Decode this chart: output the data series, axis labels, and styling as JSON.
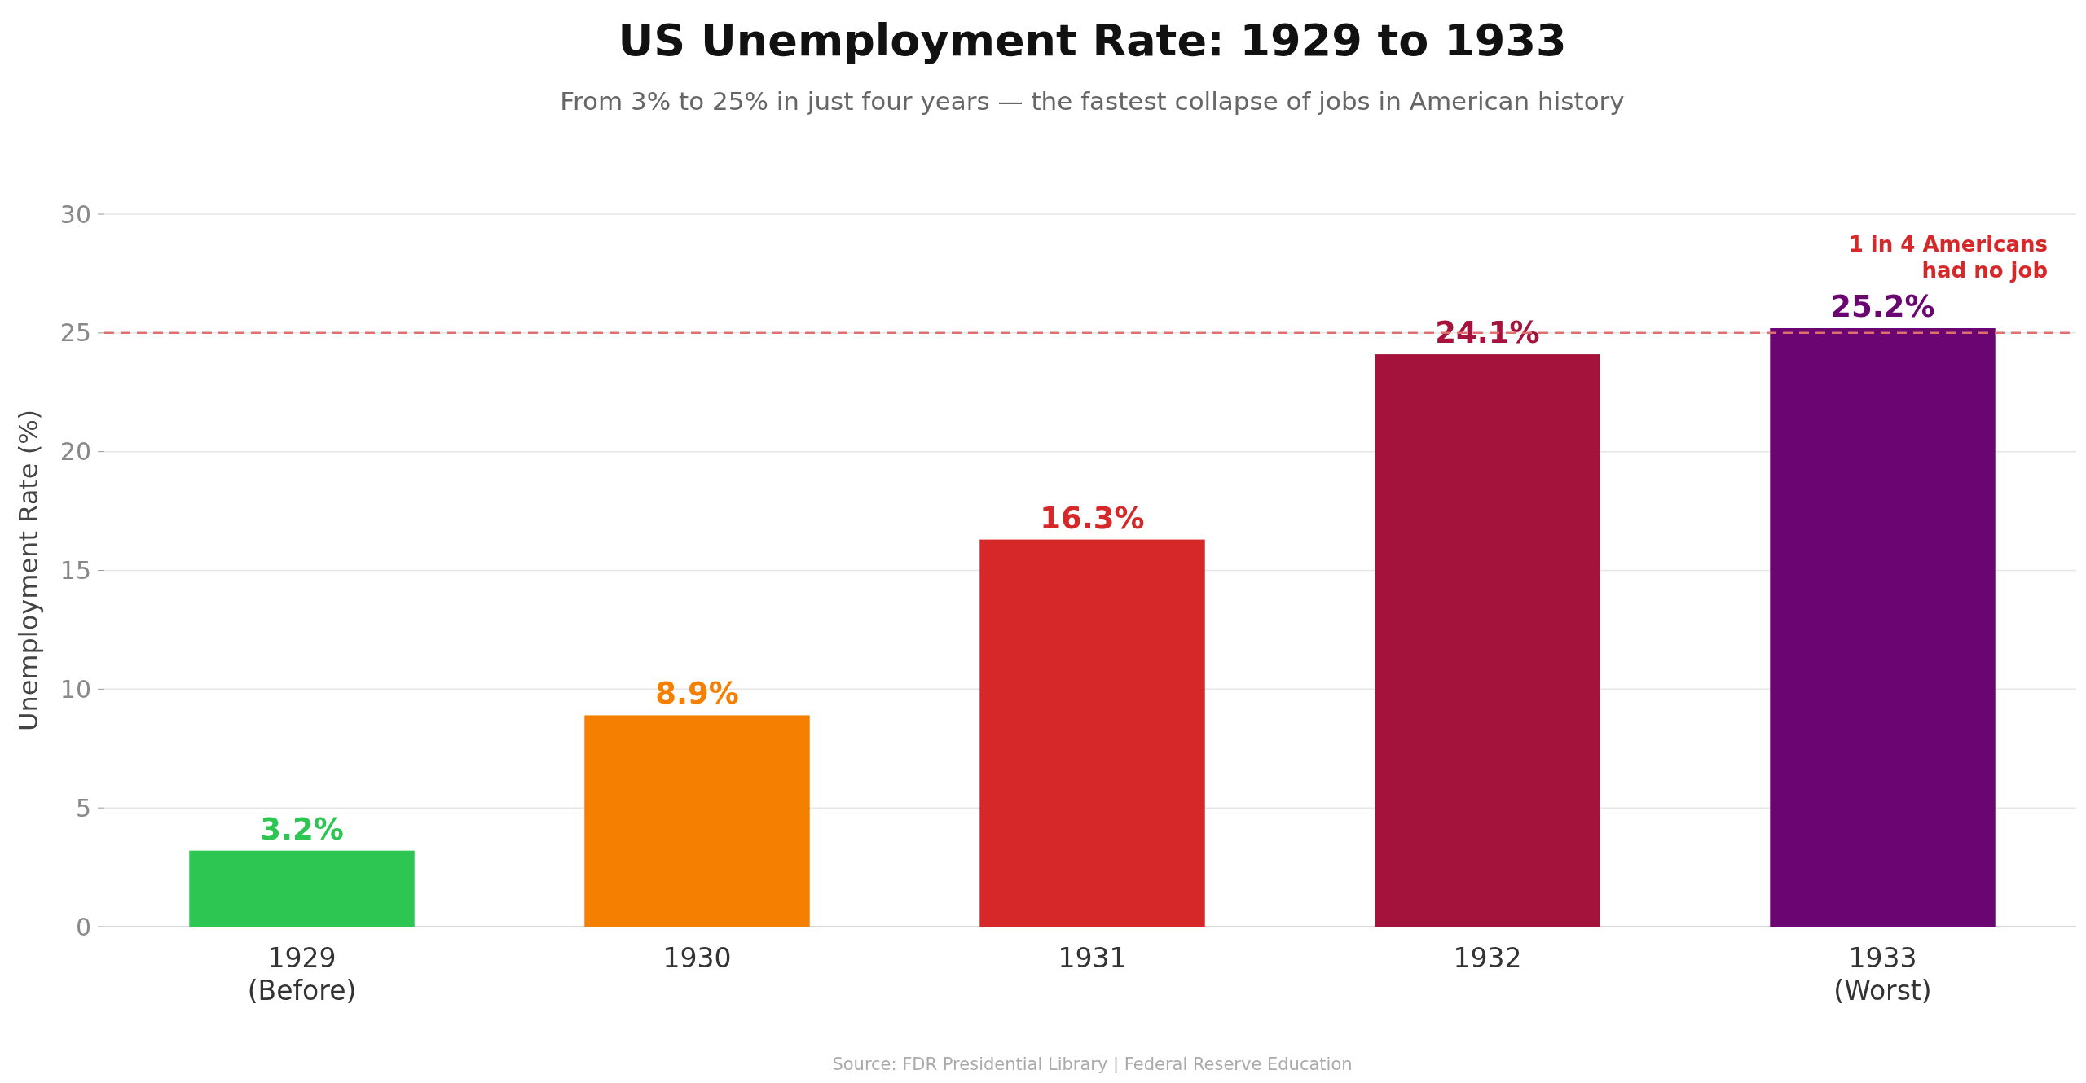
{
  "chart_data": {
    "type": "bar",
    "title": "US Unemployment Rate: 1929 to 1933",
    "subtitle": "From 3% to 25% in just four years — the fastest collapse of jobs in American history",
    "ylabel": "Unemployment Rate (%)",
    "categories": [
      "1929\n(Before)",
      "1930",
      "1931",
      "1932",
      "1933\n(Worst)"
    ],
    "values": [
      3.2,
      8.9,
      16.3,
      24.1,
      25.2
    ],
    "colors": [
      "#2dc653",
      "#f57f00",
      "#d62828",
      "#a4133c",
      "#6a0572"
    ],
    "value_labels": [
      "3.2%",
      "8.9%",
      "16.3%",
      "24.1%",
      "25.2%"
    ],
    "ylim": [
      0,
      30
    ],
    "yticks": [
      0,
      5,
      10,
      15,
      20,
      25,
      30
    ],
    "grid": "y",
    "ref_lines": [
      {
        "axis": "y",
        "value": 25,
        "label": "1 in 4 Americans\nhad no job",
        "color": "#e07070",
        "line_style": "dashed"
      }
    ],
    "annotations": [
      "Source: FDR Presidential Library | Federal Reserve Education"
    ]
  }
}
